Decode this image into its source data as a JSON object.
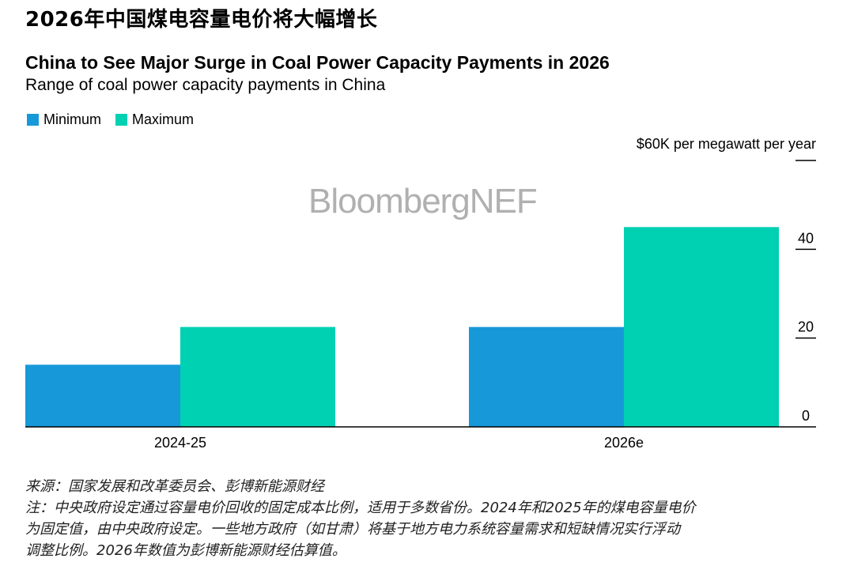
{
  "headline": "2026年中国煤电容量电价将大幅增长",
  "watermark": "BloombergNEF",
  "footer": {
    "source": "来源：国家发展和改革委员会、彭博新能源财经",
    "note_line1": "注：中央政府设定通过容量电价回收的固定成本比例，适用于多数省份。2024年和2025年的煤电容量电价",
    "note_line2": "为固定值，由中央政府设定。一些地方政府（如甘肃）将基于地方电力系统容量需求和短缺情况实行浮动",
    "note_line3": "调整比例。2026年数值为彭博新能源财经估算值。"
  },
  "colors": {
    "minimum": "#1799d9",
    "maximum": "#00d1b2",
    "axis": "#000000"
  },
  "chart_data": {
    "type": "bar",
    "title": "China to See Major Surge in Coal Power Capacity Payments in 2026",
    "subtitle": "Range of coal power capacity payments in China",
    "unit_label": "$60K per megawatt per year",
    "categories": [
      "2024-25",
      "2026e"
    ],
    "series": [
      {
        "name": "Minimum",
        "values": [
          14,
          22.5
        ]
      },
      {
        "name": "Maximum",
        "values": [
          22.5,
          45
        ]
      }
    ],
    "y_ticks": [
      "0",
      "20",
      "40"
    ],
    "y_tick_values": [
      0,
      20,
      40
    ],
    "ylim": [
      0,
      60
    ],
    "legend_position": "top-left",
    "y_axis_side": "right"
  }
}
